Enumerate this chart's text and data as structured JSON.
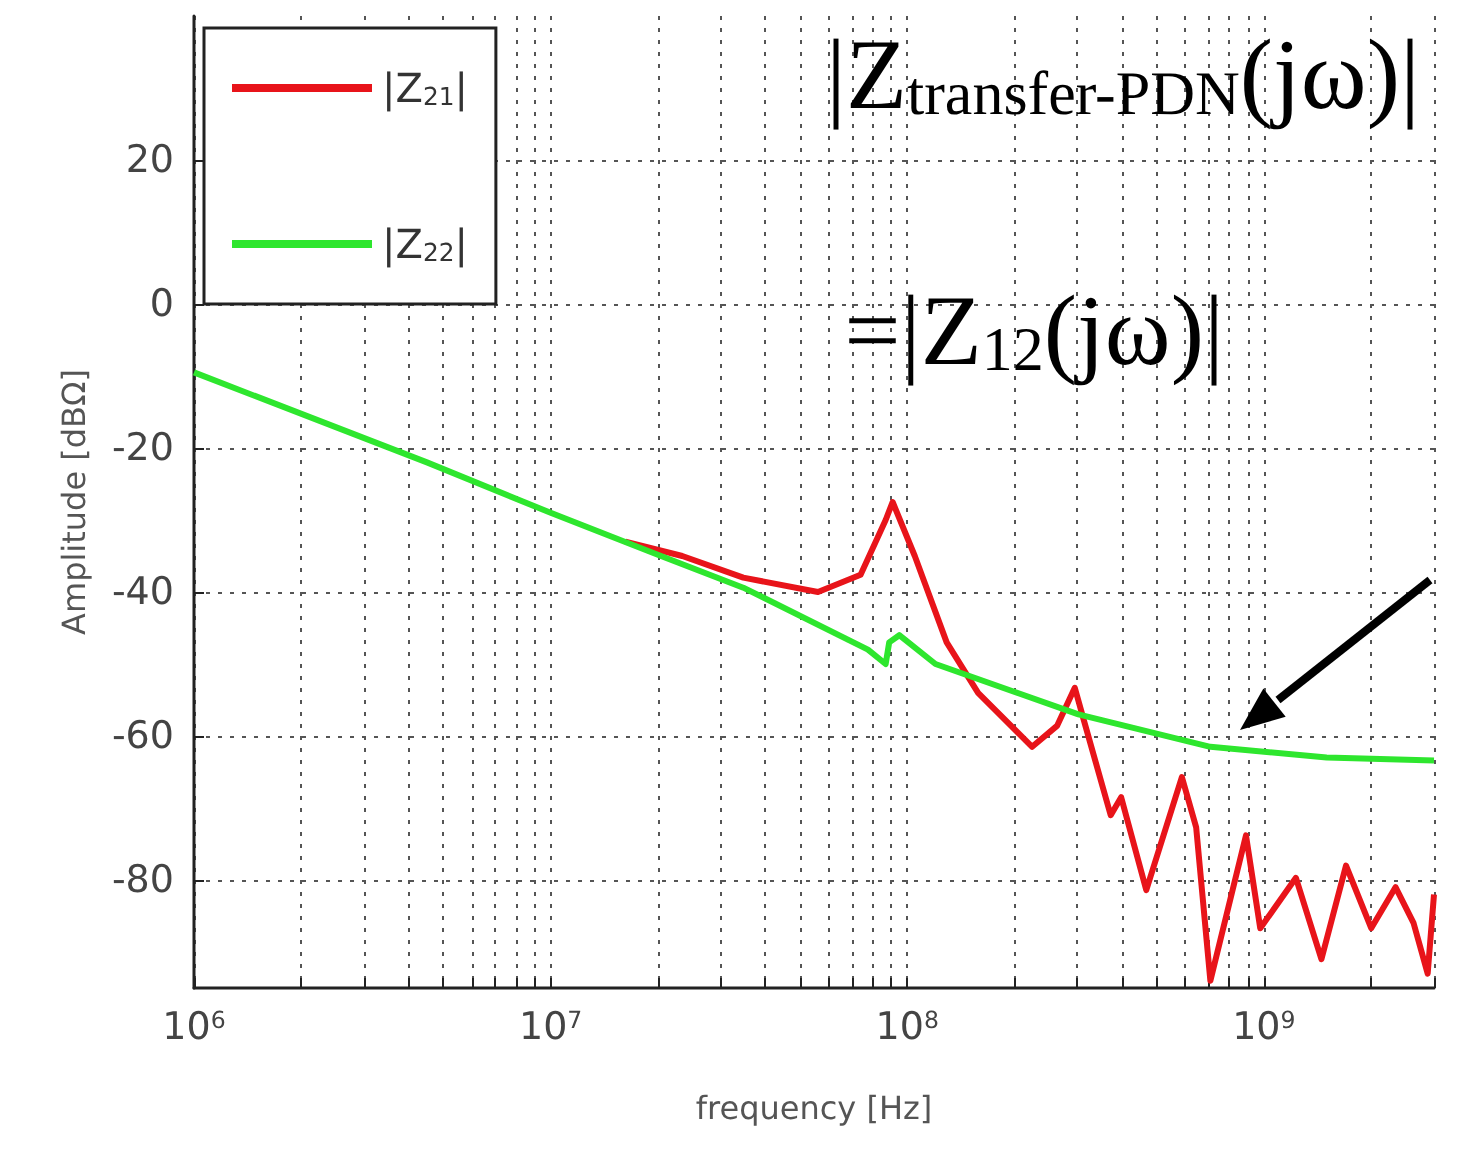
{
  "chart_data": {
    "type": "line",
    "xlabel": "frequency [Hz]",
    "ylabel": "Amplitude [dBΩ]",
    "xlim": [
      1000000,
      3000000000
    ],
    "ylim": [
      -95,
      40
    ],
    "xticks": [
      {
        "value": 1000000,
        "label": "10$^{6}$"
      },
      {
        "value": 10000000,
        "label": "10$^{7}$"
      },
      {
        "value": 100000000,
        "label": "10$^{8}$"
      },
      {
        "value": 1000000000,
        "label": "10$^{9}$"
      }
    ],
    "yticks": [
      -80,
      -60,
      -40,
      -20,
      0,
      20
    ],
    "log": "x",
    "grid": true,
    "legend": "top left",
    "annotations": [
      "|Z$_{transfer-PDN}$(jω)|",
      "=|Z$_{12}$(jω)|"
    ],
    "series": [
      {
        "name": "|Z$_{21}$|",
        "color": "#e8141a",
        "x": [
          16200000,
          23400000,
          34700000,
          56200000,
          74000000,
          87000000,
          91000000,
          105000000,
          129000000,
          158000000,
          224000000,
          263000000,
          295000000,
          316000000,
          372000000,
          398000000,
          468000000,
          589000000,
          646000000,
          708000000,
          891000000,
          977000000,
          1230000000,
          1450000000,
          1700000000,
          2000000000,
          2340000000,
          2630000000,
          2880000000,
          3000000000
        ],
        "values": [
          -33,
          -35,
          -38,
          -40,
          -37.6,
          -30,
          -27.5,
          -35,
          -47,
          -54,
          -61.5,
          -58.6,
          -53.3,
          -58.6,
          -71,
          -68.5,
          -81.4,
          -65.7,
          -72.7,
          -94,
          -73.8,
          -86.7,
          -79.7,
          -91,
          -78,
          -86.7,
          -81,
          -86,
          -93,
          -82
        ]
      },
      {
        "name": "|Z$_{22}$|",
        "color": "#2ee62e",
        "x": [
          1000000,
          4500000,
          10000000,
          20400000,
          34700000,
          77600000,
          87000000,
          89000000,
          95000000,
          120000000,
          302000000,
          708000000,
          1500000000,
          3000000000
        ],
        "values": [
          -9.5,
          -22,
          -29,
          -35,
          -39.4,
          -48,
          -50,
          -47,
          -46,
          -50,
          -57,
          -61.5,
          -63,
          -63.4
        ]
      }
    ]
  }
}
